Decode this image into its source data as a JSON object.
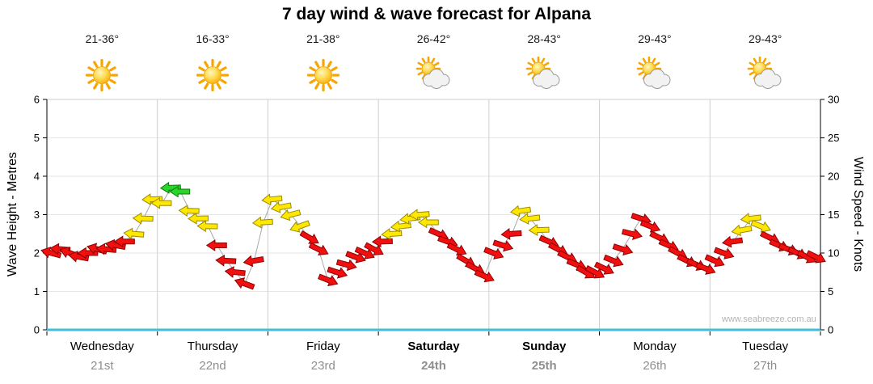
{
  "title": "7 day wind & wave forecast for Alpana",
  "watermark": "www.seabreeze.com.au",
  "days": [
    {
      "name": "Wednesday",
      "date": "21st",
      "temp": "21-36°",
      "icon": "sun-icon",
      "bold": false
    },
    {
      "name": "Thursday",
      "date": "22nd",
      "temp": "16-33°",
      "icon": "sun-icon",
      "bold": false
    },
    {
      "name": "Friday",
      "date": "23rd",
      "temp": "21-38°",
      "icon": "sun-icon",
      "bold": false
    },
    {
      "name": "Saturday",
      "date": "24th",
      "temp": "26-42°",
      "icon": "sun-cloud-icon",
      "bold": true
    },
    {
      "name": "Sunday",
      "date": "25th",
      "temp": "28-43°",
      "icon": "sun-cloud-icon",
      "bold": true
    },
    {
      "name": "Monday",
      "date": "26th",
      "temp": "29-43°",
      "icon": "sun-cloud-icon",
      "bold": false
    },
    {
      "name": "Tuesday",
      "date": "27th",
      "temp": "29-43°",
      "icon": "sun-cloud-icon",
      "bold": false
    }
  ],
  "chart_data": {
    "type": "scatter",
    "subtype": "wind-arrow-series",
    "title": "7 day wind & wave forecast for Alpana",
    "x_categories": [
      "Wednesday 21st",
      "Thursday 22nd",
      "Friday 23rd",
      "Saturday 24th",
      "Sunday 25th",
      "Monday 26th",
      "Tuesday 27th"
    ],
    "y_left": {
      "label": "Wave Height - Metres",
      "range": [
        0,
        6
      ],
      "ticks": [
        0,
        1,
        2,
        3,
        4,
        5,
        6
      ]
    },
    "y_right": {
      "label": "Wind Speed - Knots",
      "range": [
        0,
        30
      ],
      "ticks": [
        0,
        5,
        10,
        15,
        20,
        25,
        30
      ]
    },
    "points_per_day": 12,
    "days_wind": [
      {
        "day": "Wednesday 21st",
        "knots": [
          10,
          10.5,
          10,
          9.5,
          10,
          10.5,
          10.5,
          11,
          11.5,
          12.5,
          14.5,
          17
        ],
        "rot": [
          195,
          185,
          200,
          190,
          180,
          195,
          185,
          190,
          180,
          185,
          182,
          178
        ],
        "color": "rrrrrrrrryyy"
      },
      {
        "day": "Thursday 22nd",
        "knots": [
          16.5,
          18.5,
          18,
          15.5,
          14.5,
          13.5,
          11,
          9,
          7.5,
          6,
          9,
          14
        ],
        "rot": [
          180,
          178,
          180,
          182,
          179,
          181,
          180,
          183,
          186,
          200,
          170,
          176
        ],
        "color": "yggyyyrrrrry"
      },
      {
        "day": "Friday 23rd",
        "knots": [
          17,
          16,
          15,
          13.5,
          12,
          10.5,
          6.5,
          7.5,
          8.5,
          9.5,
          10,
          10.5
        ],
        "rot": [
          174,
          170,
          166,
          160,
          30,
          26,
          22,
          18,
          15,
          20,
          24,
          28
        ],
        "color": "yyyyrrrrrrrr"
      },
      {
        "day": "Saturday 24th",
        "knots": [
          11.5,
          12.5,
          13.5,
          14.5,
          15,
          14,
          12.5,
          11.5,
          10.5,
          9,
          8,
          7
        ],
        "rot": [
          178,
          176,
          174,
          172,
          176,
          180,
          24,
          20,
          26,
          30,
          28,
          24
        ],
        "color": "ryyyyyrrrrrr"
      },
      {
        "day": "Sunday 25th",
        "knots": [
          10,
          11,
          12.5,
          15.5,
          14.5,
          13,
          11.5,
          10.5,
          9.5,
          8.5,
          7.5,
          7.5
        ],
        "rot": [
          22,
          18,
          176,
          172,
          174,
          178,
          24,
          28,
          26,
          22,
          30,
          28
        ],
        "color": "rrryyyrrrrrr"
      },
      {
        "day": "Monday 26th",
        "knots": [
          8,
          9,
          10.5,
          12.5,
          14.5,
          13.5,
          12,
          11,
          10,
          9,
          8.5,
          8
        ],
        "rot": [
          26,
          22,
          18,
          14,
          18,
          22,
          26,
          24,
          28,
          26,
          24,
          22
        ],
        "color": "rrrrrrrrrrrr"
      },
      {
        "day": "Tuesday 27th",
        "knots": [
          9,
          10,
          11.5,
          13,
          14.5,
          13.5,
          12,
          11,
          10.5,
          10,
          9.5,
          9.5
        ],
        "rot": [
          24,
          20,
          172,
          170,
          174,
          22,
          26,
          24,
          22,
          26,
          28,
          26
        ],
        "color": "rrryyyrrrrrr"
      }
    ],
    "colors": {
      "r": "#f01010",
      "y": "#ffe800",
      "g": "#2bd42b"
    },
    "stroke_colors": {
      "r": "#8f0000",
      "y": "#9c8a00",
      "g": "#0a7a0a"
    },
    "style": {
      "bottom_axis": "#41bcd9",
      "day_gridline": "#cfcfcf",
      "metre_gridline": "#e6e6e6",
      "wind_line": "#a8a8a8"
    }
  }
}
